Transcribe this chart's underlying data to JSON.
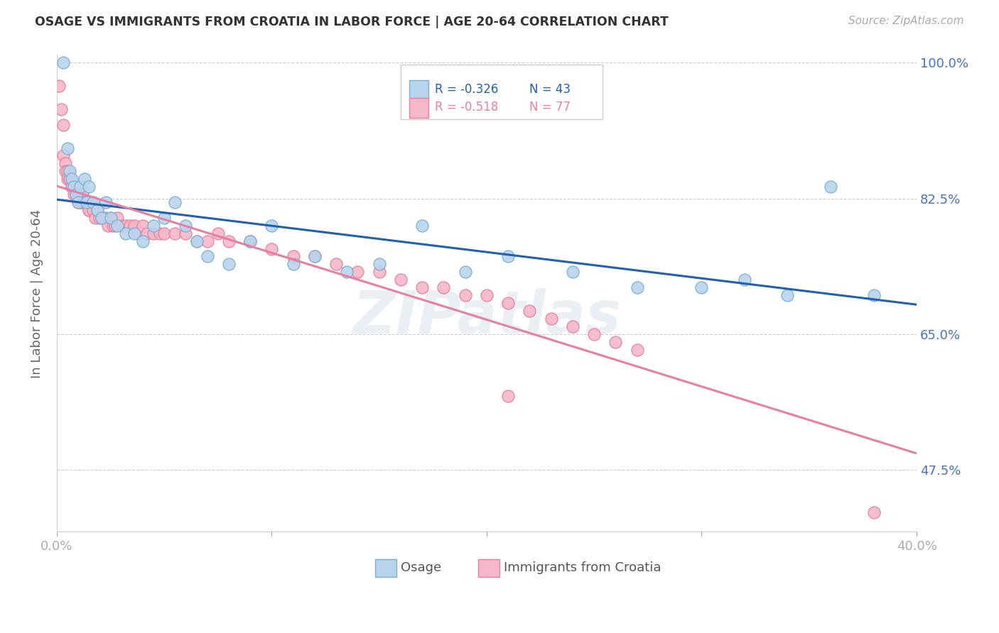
{
  "title": "OSAGE VS IMMIGRANTS FROM CROATIA IN LABOR FORCE | AGE 20-64 CORRELATION CHART",
  "source": "Source: ZipAtlas.com",
  "ylabel": "In Labor Force | Age 20-64",
  "xlim": [
    0.0,
    0.4
  ],
  "ylim": [
    0.395,
    1.01
  ],
  "yticks": [
    1.0,
    0.825,
    0.65,
    0.475
  ],
  "ytick_labels": [
    "100.0%",
    "82.5%",
    "65.0%",
    "47.5%"
  ],
  "osage_R": -0.326,
  "osage_N": 43,
  "croatia_R": -0.518,
  "croatia_N": 77,
  "osage_color": "#b8d4ed",
  "osage_edge_color": "#7aafd4",
  "croatia_color": "#f5b8c8",
  "croatia_edge_color": "#e87fa0",
  "osage_line_color": "#2060b0",
  "croatia_line_color": "#e87fa0",
  "watermark": "ZIPatlas",
  "background_color": "#ffffff",
  "grid_color": "#cccccc",
  "tick_color": "#4472c4",
  "osage_x": [
    0.003,
    0.005,
    0.006,
    0.007,
    0.008,
    0.009,
    0.01,
    0.011,
    0.013,
    0.014,
    0.015,
    0.017,
    0.019,
    0.021,
    0.023,
    0.025,
    0.028,
    0.032,
    0.036,
    0.04,
    0.045,
    0.05,
    0.055,
    0.06,
    0.065,
    0.07,
    0.08,
    0.09,
    0.1,
    0.11,
    0.12,
    0.135,
    0.15,
    0.17,
    0.19,
    0.21,
    0.24,
    0.27,
    0.3,
    0.32,
    0.34,
    0.36,
    0.38
  ],
  "osage_y": [
    1.0,
    0.89,
    0.86,
    0.85,
    0.84,
    0.83,
    0.82,
    0.84,
    0.85,
    0.82,
    0.84,
    0.82,
    0.81,
    0.8,
    0.82,
    0.8,
    0.79,
    0.78,
    0.78,
    0.77,
    0.79,
    0.8,
    0.82,
    0.79,
    0.77,
    0.75,
    0.74,
    0.77,
    0.79,
    0.74,
    0.75,
    0.73,
    0.74,
    0.79,
    0.73,
    0.75,
    0.73,
    0.71,
    0.71,
    0.72,
    0.7,
    0.84,
    0.7
  ],
  "croatia_x": [
    0.001,
    0.002,
    0.003,
    0.003,
    0.004,
    0.004,
    0.005,
    0.005,
    0.006,
    0.006,
    0.007,
    0.007,
    0.008,
    0.008,
    0.009,
    0.009,
    0.01,
    0.01,
    0.011,
    0.011,
    0.012,
    0.012,
    0.013,
    0.013,
    0.014,
    0.015,
    0.015,
    0.016,
    0.017,
    0.018,
    0.019,
    0.02,
    0.021,
    0.022,
    0.023,
    0.024,
    0.025,
    0.026,
    0.027,
    0.028,
    0.03,
    0.032,
    0.034,
    0.036,
    0.038,
    0.04,
    0.042,
    0.045,
    0.048,
    0.05,
    0.055,
    0.06,
    0.065,
    0.07,
    0.075,
    0.08,
    0.09,
    0.1,
    0.11,
    0.12,
    0.13,
    0.14,
    0.15,
    0.16,
    0.17,
    0.18,
    0.19,
    0.2,
    0.21,
    0.22,
    0.23,
    0.24,
    0.25,
    0.26,
    0.27,
    0.38,
    0.21
  ],
  "croatia_y": [
    0.97,
    0.94,
    0.92,
    0.88,
    0.87,
    0.86,
    0.86,
    0.85,
    0.85,
    0.85,
    0.84,
    0.84,
    0.84,
    0.83,
    0.83,
    0.83,
    0.83,
    0.82,
    0.82,
    0.82,
    0.83,
    0.82,
    0.82,
    0.82,
    0.82,
    0.81,
    0.81,
    0.82,
    0.81,
    0.8,
    0.81,
    0.8,
    0.8,
    0.8,
    0.8,
    0.79,
    0.8,
    0.79,
    0.79,
    0.8,
    0.79,
    0.79,
    0.79,
    0.79,
    0.78,
    0.79,
    0.78,
    0.78,
    0.78,
    0.78,
    0.78,
    0.78,
    0.77,
    0.77,
    0.78,
    0.77,
    0.77,
    0.76,
    0.75,
    0.75,
    0.74,
    0.73,
    0.73,
    0.72,
    0.71,
    0.71,
    0.7,
    0.7,
    0.69,
    0.68,
    0.67,
    0.66,
    0.65,
    0.64,
    0.63,
    0.42,
    0.57
  ]
}
